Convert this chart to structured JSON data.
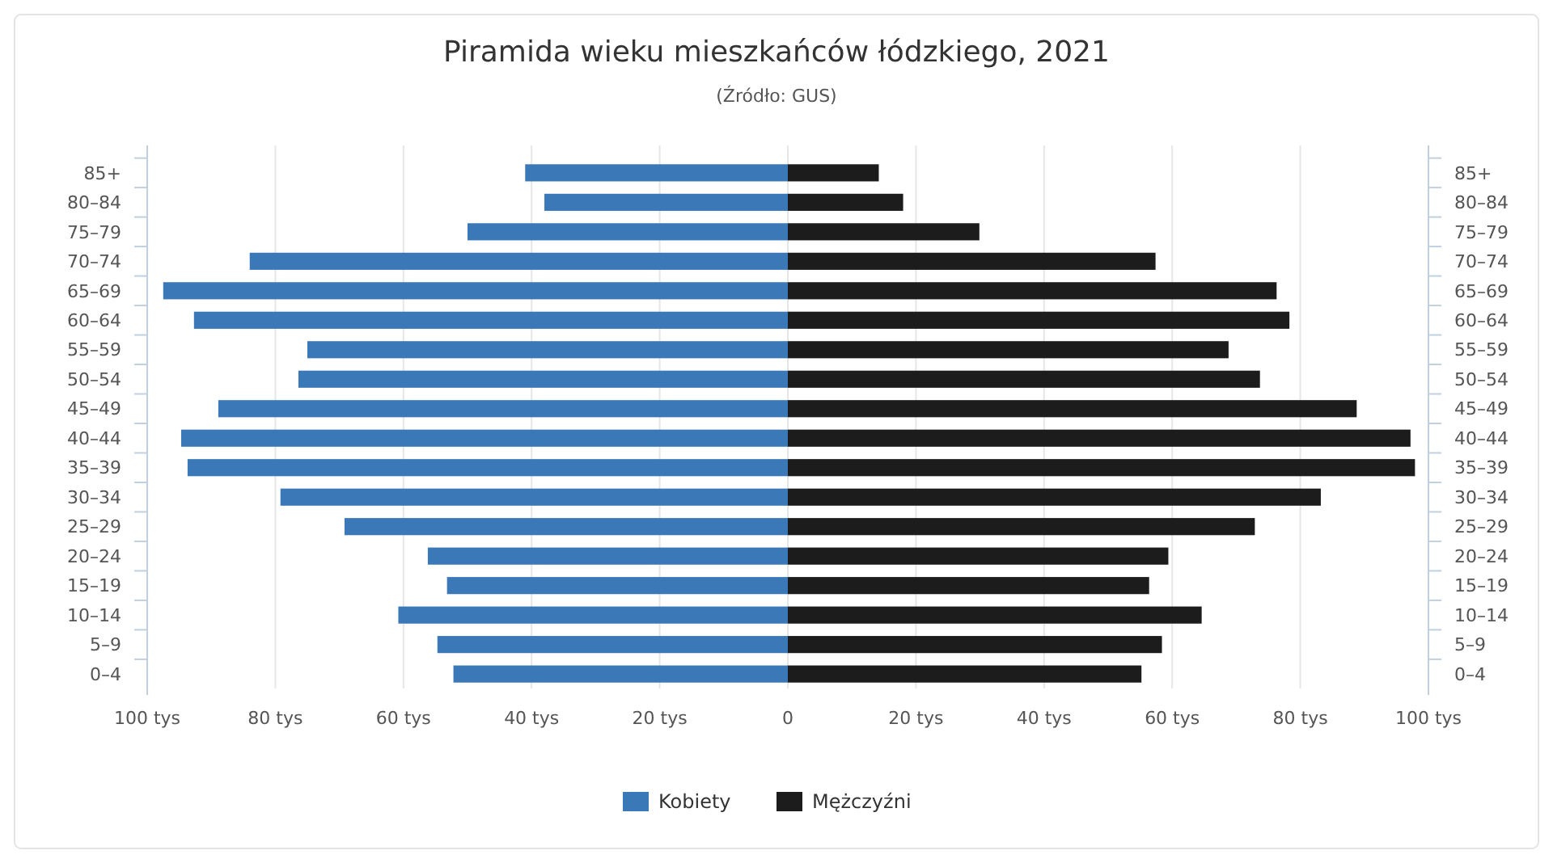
{
  "chart_data": {
    "type": "bar",
    "orientation": "horizontal",
    "stacked": true,
    "title": "Piramida wieku mieszkańców łódzkiego, 2021",
    "subtitle": "(Źródło: GUS)",
    "categories": [
      "85+",
      "80–84",
      "75–79",
      "70–74",
      "65–69",
      "60–64",
      "55–59",
      "50–54",
      "45–49",
      "40–44",
      "35–39",
      "30–34",
      "25–29",
      "20–24",
      "15–19",
      "10–14",
      "5–9",
      "0–4"
    ],
    "series": [
      {
        "name": "Kobiety",
        "color": "#3b78b8",
        "values": [
          -41,
          -38,
          -50,
          -84,
          -97.5,
          -92.7,
          -75,
          -76.4,
          -88.9,
          -94.7,
          -93.7,
          -79.2,
          -69.2,
          -56.2,
          -53.2,
          -60.8,
          -54.7,
          -52.2
        ]
      },
      {
        "name": "Mężczyźni",
        "color": "#1c1c1c",
        "values": [
          14.2,
          18,
          29.9,
          57.4,
          76.3,
          78.3,
          68.8,
          73.7,
          88.8,
          97.2,
          97.9,
          83.2,
          72.9,
          59.4,
          56.4,
          64.6,
          58.4,
          55.2
        ]
      }
    ],
    "xlim": [
      -100,
      100
    ],
    "xticks": [
      {
        "value": -100,
        "label": "100 tys"
      },
      {
        "value": -80,
        "label": "80 tys"
      },
      {
        "value": -60,
        "label": "60 tys"
      },
      {
        "value": -40,
        "label": "40 tys"
      },
      {
        "value": -20,
        "label": "20 tys"
      },
      0,
      {
        "value": 20,
        "label": "20 tys"
      },
      {
        "value": 40,
        "label": "40 tys"
      },
      {
        "value": 60,
        "label": "60 tys"
      },
      {
        "value": 80,
        "label": "80 tys"
      },
      {
        "value": 100,
        "label": "100 tys"
      }
    ],
    "grid": "x",
    "legend": "bottom"
  }
}
